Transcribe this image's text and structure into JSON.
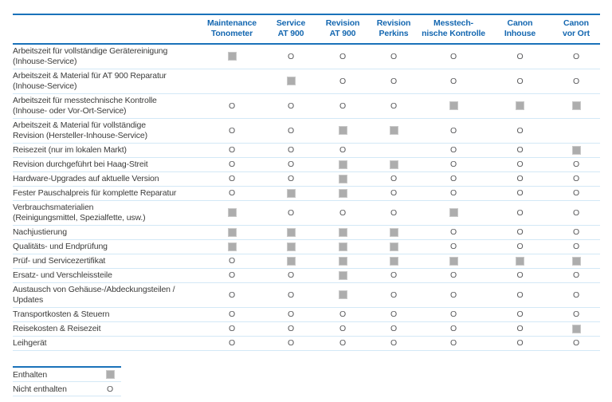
{
  "table": {
    "columns": [
      {
        "label": "Maintenance\nTonometer"
      },
      {
        "label": "Service\nAT 900"
      },
      {
        "label": "Revision\nAT 900"
      },
      {
        "label": "Revision\nPerkins"
      },
      {
        "label": "Messtech-\nnische Kontrolle"
      },
      {
        "label": "Canon\nInhouse"
      },
      {
        "label": "Canon\nvor Ort"
      }
    ],
    "symbols": {
      "included": "square",
      "not_included": "O"
    },
    "rows": [
      {
        "label": "Arbeitszeit für vollständige Gerätereinigung\n(Inhouse-Service)",
        "cells": [
          "included",
          "not_included",
          "not_included",
          "not_included",
          "not_included",
          "not_included",
          "not_included"
        ]
      },
      {
        "label": "Arbeitszeit & Material für AT 900 Reparatur\n(Inhouse-Service)",
        "cells": [
          "",
          "included",
          "not_included",
          "not_included",
          "not_included",
          "not_included",
          "not_included"
        ]
      },
      {
        "label": "Arbeitszeit für messtechnische Kontrolle\n(Inhouse- oder Vor-Ort-Service)",
        "cells": [
          "not_included",
          "not_included",
          "not_included",
          "not_included",
          "included",
          "included",
          "included"
        ]
      },
      {
        "label": "Arbeitszeit & Material für vollständige\nRevision (Hersteller-Inhouse-Service)",
        "cells": [
          "not_included",
          "not_included",
          "included",
          "included",
          "not_included",
          "not_included",
          ""
        ]
      },
      {
        "label": "Reisezeit (nur im lokalen Markt)",
        "cells": [
          "not_included",
          "not_included",
          "not_included",
          "",
          "not_included",
          "not_included",
          "included"
        ]
      },
      {
        "label": "Revision durchgeführt bei Haag-Streit",
        "cells": [
          "not_included",
          "not_included",
          "included",
          "included",
          "not_included",
          "not_included",
          "not_included"
        ]
      },
      {
        "label": "Hardware-Upgrades auf aktuelle Version",
        "cells": [
          "not_included",
          "not_included",
          "included",
          "not_included",
          "not_included",
          "not_included",
          "not_included"
        ]
      },
      {
        "label": "Fester Pauschalpreis für komplette Reparatur",
        "cells": [
          "not_included",
          "included",
          "included",
          "not_included",
          "not_included",
          "not_included",
          "not_included"
        ]
      },
      {
        "label": "Verbrauchsmaterialien\n(Reinigungsmittel, Spezialfette, usw.)",
        "cells": [
          "included",
          "not_included",
          "not_included",
          "not_included",
          "included",
          "not_included",
          "not_included"
        ]
      },
      {
        "label": "Nachjustierung",
        "cells": [
          "included",
          "included",
          "included",
          "included",
          "not_included",
          "not_included",
          "not_included"
        ]
      },
      {
        "label": "Qualitäts- und Endprüfung",
        "cells": [
          "included",
          "included",
          "included",
          "included",
          "not_included",
          "not_included",
          "not_included"
        ]
      },
      {
        "label": "Prüf- und Servicezertifikat",
        "cells": [
          "not_included",
          "included",
          "included",
          "included",
          "included",
          "included",
          "included"
        ]
      },
      {
        "label": "Ersatz- und Verschleissteile",
        "cells": [
          "not_included",
          "not_included",
          "included",
          "not_included",
          "not_included",
          "not_included",
          "not_included"
        ]
      },
      {
        "label": "Austausch von Gehäuse-/Abdeckungsteilen /\nUpdates",
        "cells": [
          "not_included",
          "not_included",
          "included",
          "not_included",
          "not_included",
          "not_included",
          "not_included"
        ]
      },
      {
        "label": "Transportkosten & Steuern",
        "cells": [
          "not_included",
          "not_included",
          "not_included",
          "not_included",
          "not_included",
          "not_included",
          "not_included"
        ]
      },
      {
        "label": "Reisekosten & Reisezeit",
        "cells": [
          "not_included",
          "not_included",
          "not_included",
          "not_included",
          "not_included",
          "not_included",
          "included"
        ]
      },
      {
        "label": "Leihgerät",
        "cells": [
          "not_included",
          "not_included",
          "not_included",
          "not_included",
          "not_included",
          "not_included",
          "not_included"
        ]
      }
    ]
  },
  "legend": {
    "items": [
      {
        "label": "Enthalten",
        "symbol": "included"
      },
      {
        "label": "Nicht enthalten",
        "symbol": "not_included"
      }
    ]
  },
  "colors": {
    "header_blue": "#1467b0",
    "rule_blue": "#1a72ba",
    "rule_light_blue": "#d3e8f6",
    "square_grey": "#adadad",
    "text_dark": "#3c3c3b",
    "symbol_grey": "#58585a"
  }
}
